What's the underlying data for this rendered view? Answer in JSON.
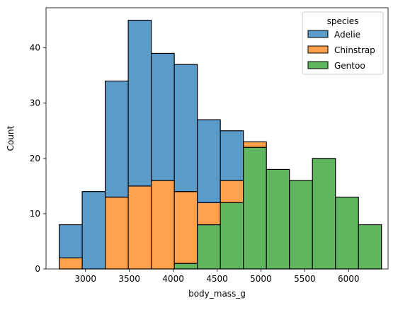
{
  "chart_data": {
    "type": "bar",
    "subtype": "stacked-histogram",
    "xlabel": "body_mass_g",
    "ylabel": "Count",
    "xlim": [
      2550,
      6450
    ],
    "ylim": [
      0,
      47.25
    ],
    "xticks": [
      3000,
      3500,
      4000,
      4500,
      5000,
      5500,
      6000
    ],
    "yticks": [
      0,
      10,
      20,
      30,
      40
    ],
    "grid": false,
    "legend": {
      "title": "species",
      "placement": "top-right"
    },
    "bin_edges": [
      2700,
      2962.5,
      3225,
      3487.5,
      3750,
      4012.5,
      4275,
      4537.5,
      4800,
      5062.5,
      5325,
      5587.5,
      5850,
      6112.5,
      6375
    ],
    "series": [
      {
        "name": "Adelie",
        "color": "#5a9bc9",
        "values": [
          6,
          14,
          21,
          30,
          23,
          23,
          15,
          9,
          0,
          0,
          0,
          0,
          0,
          0
        ]
      },
      {
        "name": "Chinstrap",
        "color": "#ffa04c",
        "values": [
          2,
          0,
          13,
          15,
          16,
          13,
          4,
          4,
          1,
          0,
          0,
          0,
          0,
          0
        ]
      },
      {
        "name": "Gentoo",
        "color": "#5fb65f",
        "values": [
          0,
          0,
          0,
          0,
          0,
          1,
          8,
          12,
          22,
          18,
          16,
          20,
          13,
          8
        ]
      }
    ]
  },
  "legend_swatch_icons": [
    "adelie-swatch-icon",
    "chinstrap-swatch-icon",
    "gentoo-swatch-icon"
  ]
}
